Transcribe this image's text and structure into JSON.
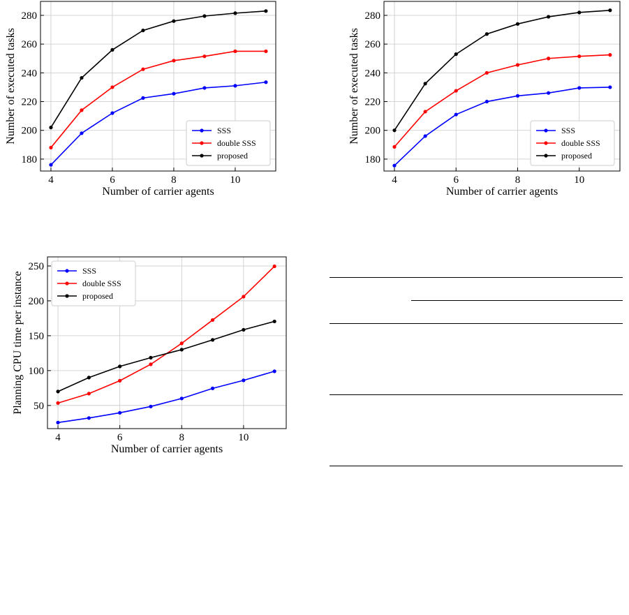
{
  "chart_data": [
    {
      "type": "line",
      "xlabel": "Number of carrier agents",
      "ylabel": "Number of executed tasks",
      "x": [
        4,
        5,
        6,
        7,
        8,
        9,
        10,
        11
      ],
      "xlim": [
        3.66,
        11.32
      ],
      "xticks": [
        4,
        6,
        8,
        10
      ],
      "ylim": [
        171.7,
        289.7
      ],
      "yticks": [
        180,
        200,
        220,
        240,
        260,
        280
      ],
      "grid": true,
      "legend": "lower right",
      "series": [
        {
          "name": "SSS",
          "color": "#0000ff",
          "values": [
            176,
            198,
            212,
            222.5,
            225.5,
            229.5,
            231,
            233.5
          ]
        },
        {
          "name": "double SSS",
          "color": "#ff0000",
          "values": [
            188,
            214,
            230,
            242.5,
            248.5,
            251.5,
            255,
            255
          ]
        },
        {
          "name": "proposed",
          "color": "#000000",
          "values": [
            202,
            236.5,
            256,
            269.5,
            276,
            279.5,
            281.5,
            283
          ]
        }
      ]
    },
    {
      "type": "line",
      "xlabel": "Number of carrier agents",
      "ylabel": "Number of executed tasks",
      "x": [
        4,
        5,
        6,
        7,
        8,
        9,
        10,
        11
      ],
      "xlim": [
        3.66,
        11.32
      ],
      "xticks": [
        4,
        6,
        8,
        10
      ],
      "ylim": [
        171.7,
        289.7
      ],
      "yticks": [
        180,
        200,
        220,
        240,
        260,
        280
      ],
      "grid": true,
      "legend": "lower right",
      "series": [
        {
          "name": "SSS",
          "color": "#0000ff",
          "values": [
            175.5,
            196,
            211,
            220,
            224,
            226,
            229.5,
            230
          ]
        },
        {
          "name": "double SSS",
          "color": "#ff0000",
          "values": [
            188.5,
            213,
            227.5,
            240,
            245.5,
            250,
            251.5,
            252.5
          ]
        },
        {
          "name": "proposed",
          "color": "#000000",
          "values": [
            200,
            232.5,
            253,
            267,
            274,
            279,
            282,
            283.5
          ]
        }
      ]
    },
    {
      "type": "line",
      "xlabel": "Number of carrier agents",
      "ylabel": "Planning CPU time per instance",
      "x": [
        4,
        5,
        6,
        7,
        8,
        9,
        10,
        11
      ],
      "xlim": [
        3.66,
        11.38
      ],
      "xticks": [
        4,
        6,
        8,
        10
      ],
      "ylim": [
        16.8,
        263
      ],
      "yticks": [
        50,
        100,
        150,
        200,
        250
      ],
      "grid": true,
      "legend": "upper left",
      "series": [
        {
          "name": "SSS",
          "color": "#0000ff",
          "values": [
            25.5,
            32,
            39.5,
            48.5,
            60,
            74.5,
            86,
            99
          ]
        },
        {
          "name": "double SSS",
          "color": "#ff0000",
          "values": [
            53.5,
            67,
            85.5,
            109,
            139,
            172.5,
            206,
            249.5
          ]
        },
        {
          "name": "proposed",
          "color": "#000000",
          "values": [
            70,
            90,
            106,
            118.5,
            130,
            144,
            158.5,
            170.5
          ]
        }
      ]
    }
  ]
}
